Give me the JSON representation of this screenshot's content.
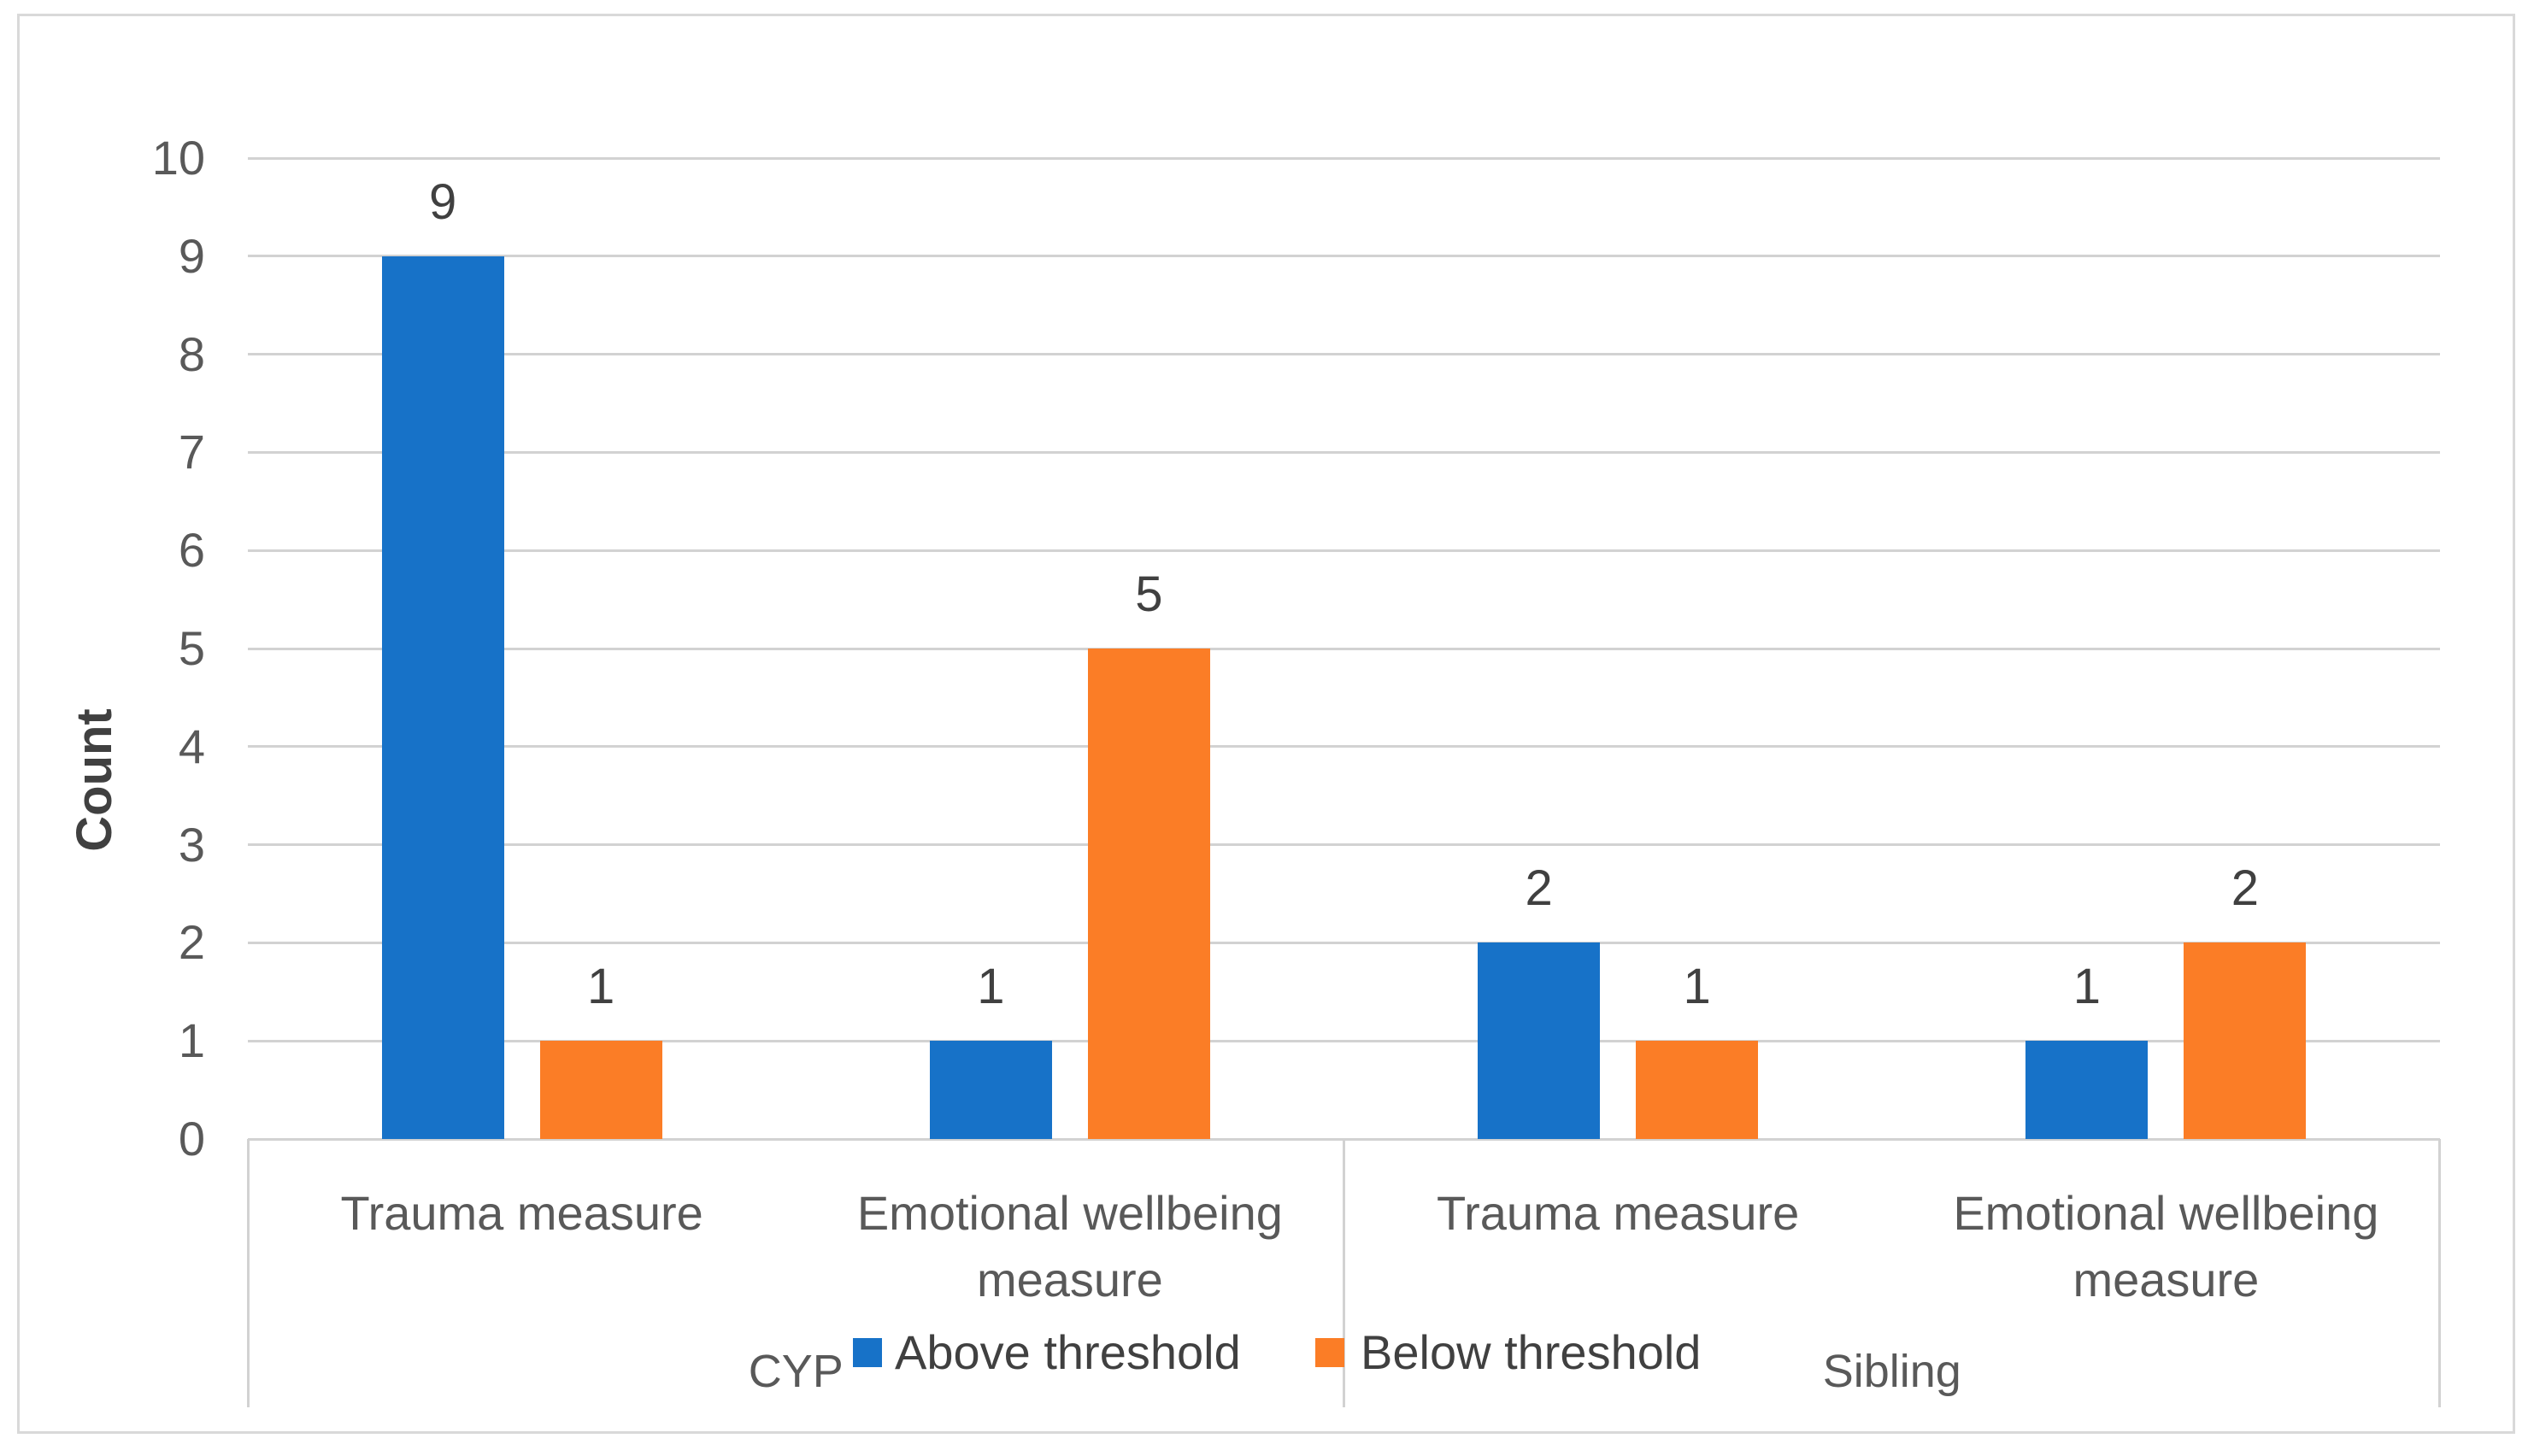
{
  "figure": {
    "background": "#FFFFFF",
    "frame_border_color": "#D9D9D9",
    "gridline_color": "#D2D2D2",
    "tick_text_color": "#595959",
    "label_text_color": "#404040"
  },
  "chart_data": {
    "type": "bar",
    "title": "",
    "ylabel": "Count",
    "xlabel": "",
    "ylim": [
      0,
      10
    ],
    "ytick_step": 1,
    "yticks": [
      0,
      1,
      2,
      3,
      4,
      5,
      6,
      7,
      8,
      9,
      10
    ],
    "grid": true,
    "data_labels": true,
    "legend_position": "bottom-center",
    "groups": [
      {
        "label": "CYP",
        "categories": [
          "Trauma measure",
          "Emotional wellbeing measure"
        ]
      },
      {
        "label": "Sibling",
        "categories": [
          "Trauma measure",
          "Emotional wellbeing measure"
        ]
      }
    ],
    "series": [
      {
        "name": "Above threshold",
        "color": "#1772C8",
        "values": [
          9,
          1,
          2,
          1
        ]
      },
      {
        "name": "Below threshold",
        "color": "#FB7D26",
        "values": [
          1,
          5,
          1,
          2
        ]
      }
    ]
  }
}
